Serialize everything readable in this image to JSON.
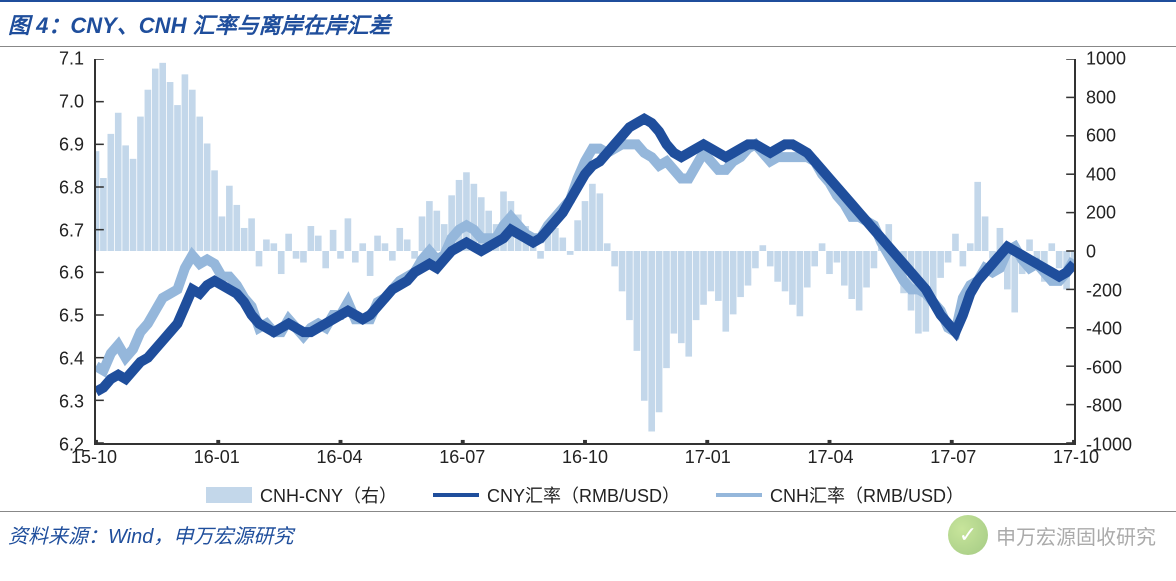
{
  "title": "图 4：CNY、CNH 汇率与离岸在岸汇差",
  "source": "资料来源：Wind，申万宏源研究",
  "watermark": "申万宏源固收研究",
  "chart": {
    "type": "combo-bar-line",
    "background_color": "#ffffff",
    "axis_color": "#333333",
    "axis_fontsize": 18,
    "left_axis": {
      "label": "",
      "ylim": [
        6.2,
        7.1
      ],
      "ytick_step": 0.1,
      "ticks": [
        "6.2",
        "6.3",
        "6.4",
        "6.5",
        "6.6",
        "6.7",
        "6.8",
        "6.9",
        "7.0",
        "7.1"
      ]
    },
    "right_axis": {
      "label": "",
      "ylim": [
        -1000,
        1000
      ],
      "ytick_step": 200,
      "ticks": [
        "-1000",
        "-800",
        "-600",
        "-400",
        "-200",
        "0",
        "200",
        "400",
        "600",
        "800",
        "1000"
      ]
    },
    "x_axis": {
      "categories": [
        "15-10",
        "16-01",
        "16-04",
        "16-07",
        "16-10",
        "17-01",
        "17-04",
        "17-07",
        "17-10"
      ]
    },
    "series": {
      "spread": {
        "name": "CNH-CNY（右）",
        "type": "bar",
        "axis": "right",
        "color": "#c3d7ea",
        "values": [
          520,
          380,
          610,
          720,
          550,
          480,
          700,
          840,
          950,
          980,
          880,
          760,
          920,
          840,
          700,
          560,
          420,
          180,
          340,
          240,
          120,
          170,
          -80,
          60,
          40,
          -120,
          90,
          -40,
          -60,
          130,
          80,
          -90,
          110,
          -40,
          170,
          -60,
          40,
          -130,
          80,
          40,
          -50,
          120,
          60,
          -40,
          180,
          260,
          210,
          140,
          290,
          370,
          410,
          350,
          280,
          210,
          140,
          310,
          260,
          190,
          130,
          60,
          -40,
          90,
          120,
          70,
          -20,
          160,
          260,
          350,
          300,
          40,
          -80,
          -210,
          -360,
          -520,
          -780,
          -940,
          -840,
          -610,
          -430,
          -480,
          -550,
          -360,
          -280,
          -210,
          -260,
          -420,
          -330,
          -240,
          -180,
          -90,
          30,
          -80,
          -160,
          -210,
          -280,
          -340,
          -190,
          -80,
          40,
          -120,
          -60,
          -180,
          -250,
          -310,
          -190,
          -90,
          40,
          140,
          -60,
          -220,
          -310,
          -430,
          -420,
          -250,
          -140,
          -60,
          90,
          -80,
          40,
          360,
          180,
          -40,
          120,
          -200,
          -320,
          -120,
          60,
          -80,
          -160,
          40,
          -90,
          -200,
          -110,
          20,
          150
        ]
      },
      "cny": {
        "name": "CNY汇率（RMB/USD）",
        "type": "line",
        "axis": "left",
        "color": "#1f4e9c",
        "line_width": 3,
        "values": [
          6.32,
          6.33,
          6.35,
          6.36,
          6.35,
          6.37,
          6.39,
          6.4,
          6.42,
          6.44,
          6.46,
          6.48,
          6.52,
          6.56,
          6.55,
          6.57,
          6.58,
          6.57,
          6.56,
          6.55,
          6.53,
          6.5,
          6.48,
          6.47,
          6.46,
          6.47,
          6.48,
          6.47,
          6.46,
          6.46,
          6.47,
          6.48,
          6.49,
          6.5,
          6.51,
          6.5,
          6.49,
          6.5,
          6.52,
          6.54,
          6.56,
          6.57,
          6.58,
          6.6,
          6.61,
          6.62,
          6.61,
          6.63,
          6.65,
          6.66,
          6.67,
          6.66,
          6.65,
          6.66,
          6.67,
          6.68,
          6.7,
          6.69,
          6.68,
          6.67,
          6.68,
          6.7,
          6.72,
          6.74,
          6.77,
          6.8,
          6.83,
          6.85,
          6.86,
          6.88,
          6.9,
          6.92,
          6.94,
          6.95,
          6.96,
          6.95,
          6.93,
          6.9,
          6.88,
          6.87,
          6.88,
          6.89,
          6.9,
          6.89,
          6.88,
          6.87,
          6.88,
          6.89,
          6.9,
          6.9,
          6.89,
          6.88,
          6.89,
          6.9,
          6.9,
          6.89,
          6.88,
          6.86,
          6.84,
          6.82,
          6.8,
          6.78,
          6.76,
          6.74,
          6.72,
          6.7,
          6.68,
          6.66,
          6.64,
          6.62,
          6.6,
          6.58,
          6.56,
          6.53,
          6.5,
          6.48,
          6.46,
          6.5,
          6.55,
          6.58,
          6.6,
          6.62,
          6.64,
          6.66,
          6.65,
          6.64,
          6.63,
          6.62,
          6.61,
          6.6,
          6.59,
          6.6,
          6.62
        ]
      },
      "cnh": {
        "name": "CNH汇率（RMB/USD）",
        "type": "line",
        "axis": "left",
        "color": "#95b7db",
        "line_width": 3,
        "values": [
          6.38,
          6.37,
          6.41,
          6.43,
          6.4,
          6.42,
          6.46,
          6.48,
          6.51,
          6.54,
          6.55,
          6.56,
          6.61,
          6.64,
          6.62,
          6.63,
          6.62,
          6.59,
          6.59,
          6.57,
          6.54,
          6.52,
          6.47,
          6.48,
          6.46,
          6.46,
          6.49,
          6.47,
          6.45,
          6.47,
          6.48,
          6.47,
          6.5,
          6.5,
          6.53,
          6.49,
          6.49,
          6.49,
          6.53,
          6.54,
          6.56,
          6.58,
          6.59,
          6.6,
          6.63,
          6.65,
          6.63,
          6.64,
          6.68,
          6.7,
          6.71,
          6.7,
          6.68,
          6.68,
          6.68,
          6.71,
          6.73,
          6.71,
          6.69,
          6.68,
          6.68,
          6.71,
          6.73,
          6.75,
          6.77,
          6.82,
          6.86,
          6.89,
          6.89,
          6.88,
          6.89,
          6.9,
          6.9,
          6.9,
          6.88,
          6.87,
          6.85,
          6.86,
          6.84,
          6.82,
          6.82,
          6.85,
          6.88,
          6.86,
          6.84,
          6.84,
          6.86,
          6.87,
          6.89,
          6.9,
          6.88,
          6.86,
          6.87,
          6.87,
          6.87,
          6.87,
          6.87,
          6.86,
          6.83,
          6.81,
          6.78,
          6.76,
          6.73,
          6.73,
          6.72,
          6.71,
          6.67,
          6.64,
          6.61,
          6.58,
          6.56,
          6.56,
          6.55,
          6.53,
          6.51,
          6.47,
          6.46,
          6.54,
          6.57,
          6.58,
          6.61,
          6.6,
          6.61,
          6.65,
          6.66,
          6.63,
          6.61,
          6.62,
          6.6,
          6.58,
          6.58,
          6.6,
          6.63
        ]
      }
    },
    "legend": {
      "position": "bottom",
      "items": [
        "spread",
        "cny",
        "cnh"
      ]
    }
  }
}
